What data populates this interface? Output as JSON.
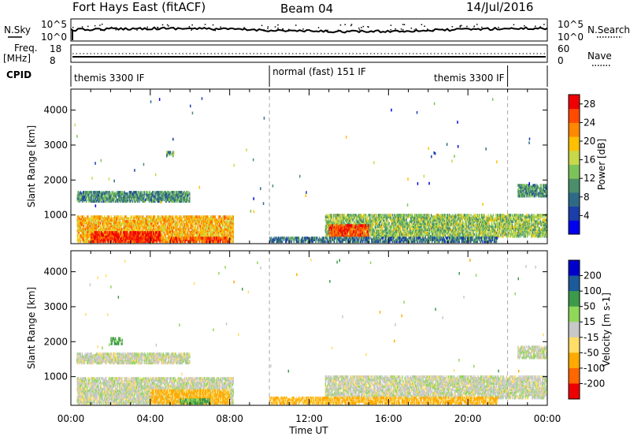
{
  "header": {
    "title": "Fort Hays East (fitACF)",
    "beam": "Beam 04",
    "date": "14/Jul/2016"
  },
  "strips": {
    "nsky_label": "N.Sky",
    "nsky_top": "10^5",
    "nsky_bottom": "10^0",
    "nsearch_label": "N.Search",
    "nsearch_top": "10^5",
    "nsearch_bottom": "10^0",
    "freq_label": "Freq.",
    "freq_unit": "[MHz]",
    "freq_top": "18",
    "freq_bottom": "8",
    "nave_label": "Nave",
    "nave_top": "60",
    "nave_bottom": "0",
    "cpid_label": "CPID",
    "modes": [
      {
        "name": "themis 3300 IF",
        "start_hour": 0,
        "end_hour": 10
      },
      {
        "name": "normal (fast) 151 IF",
        "start_hour": 10,
        "end_hour": 22
      },
      {
        "name": "themis 3300 IF",
        "start_hour": 22,
        "end_hour": 24
      }
    ]
  },
  "chart_data": [
    {
      "type": "heatmap",
      "name": "Power",
      "xlabel": "",
      "ylabel": "Slant Range [km]",
      "xlim": [
        0,
        24
      ],
      "ylim": [
        180,
        4600
      ],
      "yticks": [
        1000,
        2000,
        3000,
        4000
      ],
      "colorbar": {
        "label": "Power [dB]",
        "ticks": [
          4,
          8,
          12,
          16,
          20,
          24,
          28
        ],
        "range": [
          0,
          30
        ]
      },
      "mode_boundaries_hours": [
        10,
        22
      ],
      "echo_regions": [
        {
          "t0": 0.3,
          "t1": 8.2,
          "r0": 200,
          "r1": 950,
          "level": 20
        },
        {
          "t0": 1.0,
          "t1": 4.5,
          "r0": 200,
          "r1": 500,
          "level": 28
        },
        {
          "t0": 5.0,
          "t1": 8.0,
          "r0": 200,
          "r1": 350,
          "level": 26
        },
        {
          "t0": 0.3,
          "t1": 6.0,
          "r0": 1350,
          "r1": 1650,
          "level": 10
        },
        {
          "t0": 12.8,
          "t1": 24.0,
          "r0": 350,
          "r1": 1000,
          "level": 14
        },
        {
          "t0": 13.0,
          "t1": 15.0,
          "r0": 350,
          "r1": 700,
          "level": 26
        },
        {
          "t0": 10.0,
          "t1": 21.5,
          "r0": 200,
          "r1": 350,
          "level": 8
        },
        {
          "t0": 22.5,
          "t1": 24.0,
          "r0": 1500,
          "r1": 1850,
          "level": 10
        },
        {
          "t0": 4.8,
          "t1": 5.2,
          "r0": 2650,
          "r1": 2800,
          "level": 12
        }
      ]
    },
    {
      "type": "heatmap",
      "name": "Velocity",
      "xlabel": "Time UT",
      "ylabel": "Slant Range [km]",
      "xlim": [
        0,
        24
      ],
      "ylim": [
        180,
        4600
      ],
      "xticks": [
        "00:00",
        "04:00",
        "08:00",
        "12:00",
        "16:00",
        "20:00",
        "00:00"
      ],
      "yticks": [
        1000,
        2000,
        3000,
        4000
      ],
      "colorbar": {
        "label": "Velocity [m s-1]",
        "ticks": [
          200,
          100,
          50,
          15,
          -15,
          -50,
          -100,
          -200
        ]
      },
      "mode_boundaries_hours": [
        10,
        22
      ],
      "echo_regions": [
        {
          "t0": 0.3,
          "t1": 8.2,
          "r0": 200,
          "r1": 950,
          "value": 0
        },
        {
          "t0": 4.0,
          "t1": 8.0,
          "r0": 200,
          "r1": 600,
          "value": -60
        },
        {
          "t0": 5.5,
          "t1": 7.0,
          "r0": 200,
          "r1": 350,
          "value": 60
        },
        {
          "t0": 0.3,
          "t1": 6.0,
          "r0": 1350,
          "r1": 1650,
          "value": 0
        },
        {
          "t0": 12.8,
          "t1": 24.0,
          "r0": 350,
          "r1": 1000,
          "value": 0
        },
        {
          "t0": 10.0,
          "t1": 21.5,
          "r0": 200,
          "r1": 400,
          "value": -60
        },
        {
          "t0": 22.5,
          "t1": 24.0,
          "r0": 1500,
          "r1": 1850,
          "value": 0
        },
        {
          "t0": 2.0,
          "t1": 2.6,
          "r0": 1900,
          "r1": 2100,
          "value": 60
        }
      ]
    }
  ],
  "colors": {
    "power_scale": [
      "#0000ee",
      "#1b3ea8",
      "#2e6a86",
      "#4a8f6a",
      "#7cc35a",
      "#c8d84a",
      "#ffc000",
      "#ff8800",
      "#ff4a00",
      "#ee0000"
    ],
    "velocity_scale": [
      "#ee0000",
      "#ff6600",
      "#ffaa00",
      "#ffdd66",
      "#c8c8c8",
      "#8fd85a",
      "#3c9a4a",
      "#1c5a9a",
      "#0000cc"
    ]
  }
}
